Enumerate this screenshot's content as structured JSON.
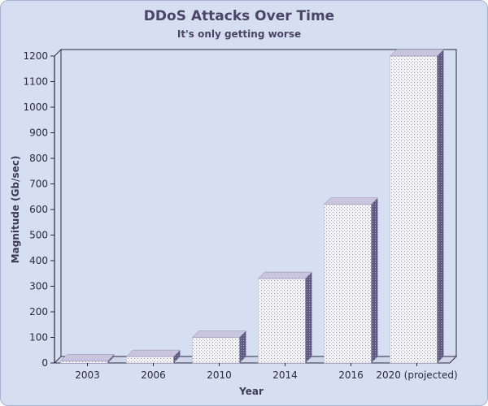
{
  "chart_data": {
    "type": "bar",
    "title": "DDoS Attacks Over Time",
    "subtitle": "It's only getting worse",
    "xlabel": "Year",
    "ylabel": "Magnitude (Gb/sec)",
    "categories": [
      "2003",
      "2006",
      "2010",
      "2014",
      "2016",
      "2020 (projected)"
    ],
    "values": [
      8,
      25,
      100,
      330,
      620,
      1200
    ],
    "ylim": [
      0,
      1200
    ],
    "yticks": [
      0,
      100,
      200,
      300,
      400,
      500,
      600,
      700,
      800,
      900,
      1000,
      1100,
      1200
    ],
    "grid": false,
    "colors": {
      "bar_front": "#f4f4fb",
      "bar_side": "#5f5a80",
      "bar_top": "#c9c5de",
      "background": "#d6def2",
      "text": "#2b2940"
    }
  }
}
